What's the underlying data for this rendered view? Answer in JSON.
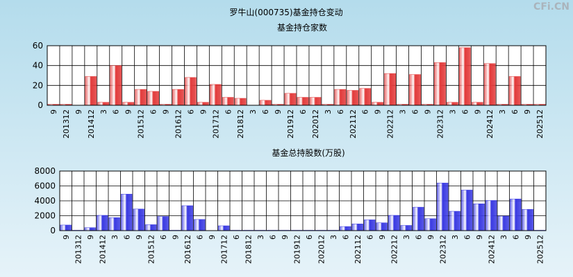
{
  "title": "罗牛山(000735)基金持仓变动",
  "watermark": "CFi.CN",
  "chart_data": [
    {
      "type": "bar",
      "title": "基金持仓家数",
      "color": "#e23a3a",
      "grid": true,
      "categories": [
        "9",
        "201312",
        "9",
        "201412",
        "3",
        "6",
        "9",
        "201512",
        "6",
        "9",
        "201612",
        "6",
        "9",
        "201712",
        "6",
        "201812",
        "3",
        "6",
        "9",
        "201912",
        "6",
        "202012",
        "3",
        "6",
        "202112",
        "6",
        "9",
        "202212",
        "3",
        "6",
        "9",
        "202312",
        "3",
        "6",
        "9",
        "202412",
        "3",
        "6",
        "9",
        "202512"
      ],
      "values": [
        1,
        1,
        0,
        29,
        3,
        40,
        3,
        16,
        14,
        1,
        16,
        28,
        3,
        21,
        8,
        7,
        0,
        5,
        1,
        12,
        8,
        8,
        1,
        16,
        15,
        17,
        3,
        32,
        1,
        31,
        1,
        43,
        3,
        58,
        3,
        42,
        1,
        29,
        1,
        1
      ],
      "ylim": [
        0,
        60
      ],
      "yticks": [
        0,
        20,
        40,
        60
      ]
    },
    {
      "type": "bar",
      "title": "基金总持股数(万股)",
      "color": "#3a3ae2",
      "grid": true,
      "categories": [
        "9",
        "201312",
        "9",
        "201412",
        "3",
        "6",
        "9",
        "201512",
        "6",
        "9",
        "201612",
        "6",
        "9",
        "201712",
        "6",
        "201812",
        "3",
        "6",
        "9",
        "201912",
        "6",
        "202012",
        "3",
        "6",
        "202112",
        "6",
        "9",
        "202212",
        "3",
        "6",
        "9",
        "202312",
        "3",
        "6",
        "9",
        "202412",
        "3",
        "6",
        "9",
        "202512"
      ],
      "values": [
        750,
        50,
        400,
        2050,
        1750,
        4900,
        2900,
        800,
        1900,
        50,
        3350,
        1500,
        0,
        650,
        50,
        50,
        50,
        50,
        50,
        50,
        50,
        50,
        50,
        550,
        900,
        1450,
        1050,
        2050,
        700,
        3150,
        1600,
        6400,
        2600,
        5450,
        3600,
        4050,
        1950,
        4250,
        2850,
        50
      ],
      "ylim": [
        0,
        8000
      ],
      "yticks": [
        0,
        2000,
        4000,
        6000,
        8000
      ]
    }
  ]
}
